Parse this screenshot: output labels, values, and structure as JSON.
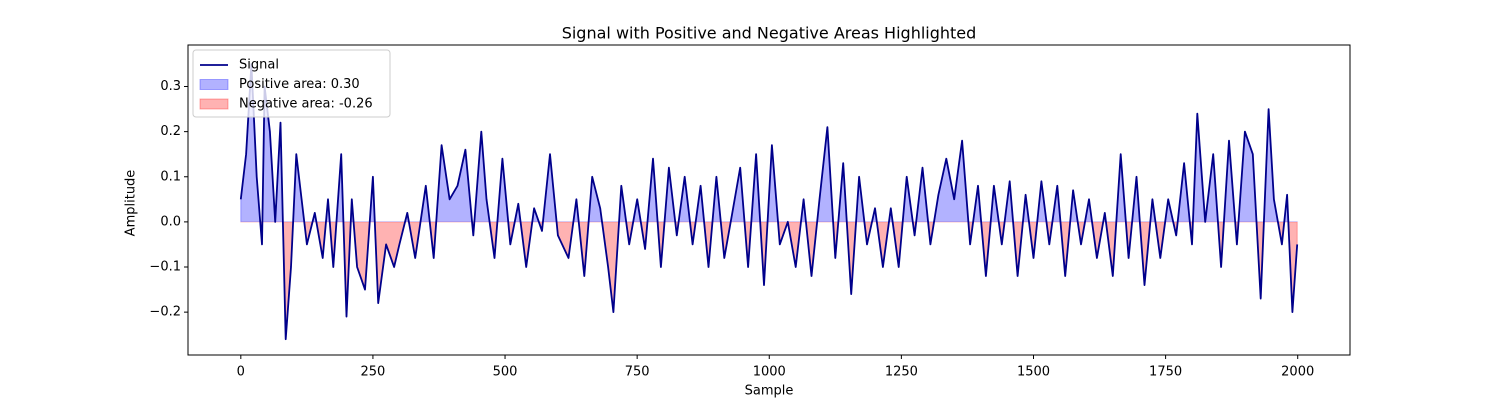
{
  "chart_data": {
    "type": "line",
    "title": "Signal with Positive and Negative Areas Highlighted",
    "x_label": "Sample",
    "y_label": "Amplitude",
    "xlim": [
      -99.95,
      2098.95
    ],
    "ylim": [
      -0.295,
      0.392
    ],
    "xticks": [
      0,
      250,
      500,
      750,
      1000,
      1250,
      1500,
      1750,
      2000
    ],
    "yticks": [
      {
        "value": -0.2,
        "label": "−0.2"
      },
      {
        "value": -0.1,
        "label": "−0.1"
      },
      {
        "value": 0,
        "label": "0.0"
      },
      {
        "value": 0.1,
        "label": "0.1"
      },
      {
        "value": 0.2,
        "label": "0.2"
      },
      {
        "value": 0.3,
        "label": "0.3"
      }
    ],
    "legend": "upper left",
    "x": [
      0,
      10,
      20,
      30,
      40,
      45,
      55,
      65,
      75,
      85,
      95,
      105,
      115,
      125,
      140,
      155,
      165,
      175,
      190,
      200,
      210,
      220,
      235,
      250,
      260,
      275,
      290,
      300,
      315,
      330,
      350,
      365,
      380,
      395,
      410,
      425,
      440,
      455,
      465,
      480,
      495,
      510,
      525,
      540,
      555,
      570,
      585,
      600,
      620,
      635,
      650,
      665,
      680,
      695,
      705,
      720,
      735,
      750,
      765,
      780,
      795,
      810,
      825,
      840,
      855,
      870,
      885,
      900,
      915,
      930,
      945,
      960,
      975,
      990,
      1005,
      1020,
      1035,
      1050,
      1065,
      1080,
      1095,
      1110,
      1125,
      1140,
      1155,
      1170,
      1185,
      1200,
      1215,
      1230,
      1245,
      1260,
      1275,
      1290,
      1305,
      1320,
      1335,
      1350,
      1365,
      1380,
      1395,
      1410,
      1425,
      1440,
      1455,
      1470,
      1485,
      1500,
      1515,
      1530,
      1545,
      1560,
      1575,
      1590,
      1605,
      1620,
      1635,
      1650,
      1665,
      1680,
      1695,
      1710,
      1725,
      1740,
      1755,
      1770,
      1785,
      1800,
      1810,
      1825,
      1840,
      1855,
      1870,
      1885,
      1900,
      1915,
      1930,
      1945,
      1955,
      1970,
      1980,
      1990,
      1999
    ],
    "series": [
      {
        "name": "Signal",
        "color": "#00008b",
        "values": [
          0.05,
          0.15,
          0.35,
          0.1,
          -0.05,
          0.3,
          0.2,
          0.0,
          0.22,
          -0.26,
          -0.1,
          0.15,
          0.05,
          -0.05,
          0.02,
          -0.08,
          0.05,
          -0.1,
          0.15,
          -0.21,
          0.05,
          -0.1,
          -0.15,
          0.1,
          -0.18,
          -0.05,
          -0.1,
          -0.05,
          0.02,
          -0.08,
          0.08,
          -0.08,
          0.17,
          0.05,
          0.08,
          0.16,
          -0.03,
          0.2,
          0.05,
          -0.08,
          0.14,
          -0.05,
          0.04,
          -0.1,
          0.03,
          -0.02,
          0.15,
          -0.03,
          -0.08,
          0.05,
          -0.12,
          0.1,
          0.03,
          -0.1,
          -0.2,
          0.08,
          -0.05,
          0.05,
          -0.06,
          0.14,
          -0.1,
          0.12,
          -0.03,
          0.1,
          -0.05,
          0.08,
          -0.1,
          0.1,
          -0.08,
          0.02,
          0.12,
          -0.1,
          0.15,
          -0.14,
          0.17,
          -0.05,
          0.0,
          -0.1,
          0.05,
          -0.12,
          0.05,
          0.21,
          -0.08,
          0.13,
          -0.16,
          0.1,
          -0.05,
          0.03,
          -0.1,
          0.03,
          -0.1,
          0.1,
          -0.03,
          0.12,
          -0.05,
          0.06,
          0.14,
          0.05,
          0.18,
          -0.05,
          0.08,
          -0.12,
          0.08,
          -0.05,
          0.09,
          -0.12,
          0.06,
          -0.08,
          0.09,
          -0.05,
          0.08,
          -0.12,
          0.07,
          -0.05,
          0.05,
          -0.08,
          0.02,
          -0.12,
          0.15,
          -0.08,
          0.1,
          -0.14,
          0.05,
          -0.08,
          0.05,
          -0.03,
          0.13,
          -0.05,
          0.24,
          0.0,
          0.15,
          -0.1,
          0.18,
          -0.05,
          0.2,
          0.15,
          -0.17,
          0.25,
          0.05,
          -0.05,
          0.06,
          -0.2,
          -0.05
        ]
      },
      {
        "name": "Positive area: 0.30",
        "color": "#0000ff"
      },
      {
        "name": "Negative area: -0.26",
        "color": "#ff0000"
      }
    ]
  }
}
